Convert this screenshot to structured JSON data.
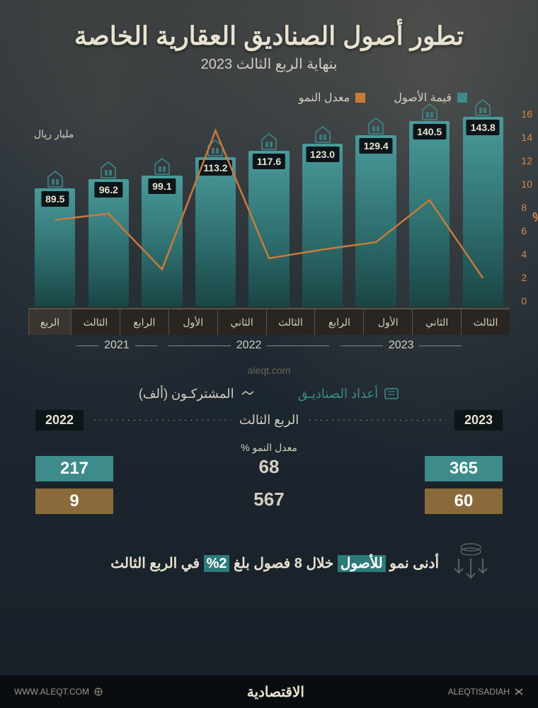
{
  "header": {
    "title": "تطور أصول الصناديق العقارية الخاصة",
    "subtitle": "بنهاية الربع الثالث 2023"
  },
  "legend": {
    "assets": {
      "label": "قيمة الأصول",
      "color": "#3d8b8b"
    },
    "growth": {
      "label": "معدل النمو",
      "color": "#c97a3a"
    }
  },
  "chart": {
    "type": "bar+line",
    "unit_label": "مليار ريال",
    "pct_symbol": "%",
    "bar_colors": {
      "top": "#4a9b9b",
      "bottom": "#1a4545"
    },
    "line_color": "#c97a3a",
    "label_box_bg": "#0d1518",
    "label_box_fg": "#e8e2d0",
    "y_right": {
      "min": 0,
      "max": 16,
      "step": 2,
      "color": "#d78a4a"
    },
    "bars": [
      {
        "quarter": "الثالث",
        "value": 89.5,
        "growth_pct": 7.0
      },
      {
        "quarter": "الرابع",
        "value": 96.2,
        "growth_pct": 7.5
      },
      {
        "quarter": "الأول",
        "value": 99.1,
        "growth_pct": 3.0
      },
      {
        "quarter": "الثاني",
        "value": 113.2,
        "growth_pct": 14.2
      },
      {
        "quarter": "الثالث",
        "value": 117.6,
        "growth_pct": 3.9
      },
      {
        "quarter": "الرابع",
        "value": 123.0,
        "growth_pct": 4.6
      },
      {
        "quarter": "الأول",
        "value": 129.4,
        "growth_pct": 5.2
      },
      {
        "quarter": "الثاني",
        "value": 140.5,
        "growth_pct": 8.6
      },
      {
        "quarter": "الثالث",
        "value": 143.8,
        "growth_pct": 2.3
      }
    ],
    "xaxis_head": "الربع",
    "years": [
      {
        "label": "2021",
        "span": 2
      },
      {
        "label": "2022",
        "span": 4
      },
      {
        "label": "2023",
        "span": 3
      }
    ],
    "bar_max_ref": 150
  },
  "watermark": "aleqt.com",
  "metrics": {
    "headers": {
      "funds": {
        "label": "أعداد الصناديـق",
        "color": "#3d8b8b"
      },
      "subs": {
        "label": "المشتركـون (ألف)",
        "color": "#d4cfc0"
      }
    },
    "compare": {
      "right_year": "2023",
      "left_year": "2022",
      "quarter_label": "الربع الثالث"
    },
    "growth_label": "معدل النمو %",
    "rows": [
      {
        "left": "217",
        "mid": "68",
        "right": "365",
        "color": "#3d8b8b"
      },
      {
        "left": "9",
        "mid": "567",
        "right": "60",
        "color": "#8a6a3a"
      }
    ]
  },
  "callout": {
    "pre": "أدنى نمو",
    "hl1_text": "للأصول",
    "hl1_bg": "#2d7a7a",
    "mid": " خلال 8 فصول بلغ ",
    "hl2_text": "2%",
    "hl2_bg": "#2d7a7a",
    "post": " في الربع الثالث"
  },
  "footer": {
    "brand": "الاقتصادية",
    "handle": "ALEQTISADIAH",
    "site": "WWW.ALEQT.COM"
  }
}
